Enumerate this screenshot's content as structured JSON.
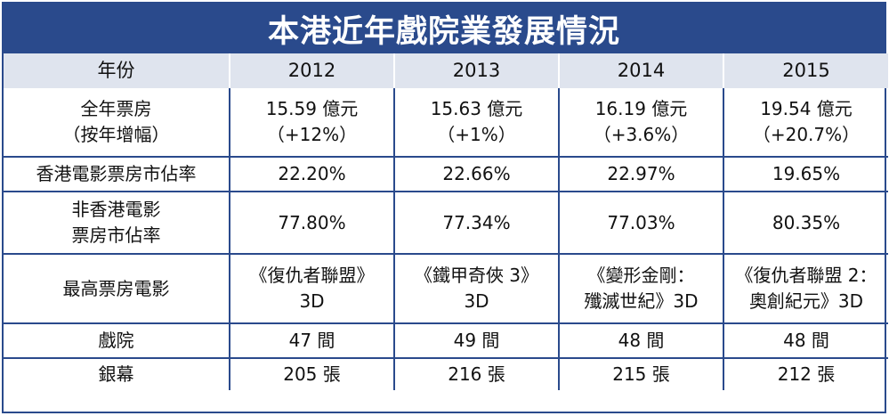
{
  "title": "本港近年戲院業發展情況",
  "header": {
    "label": "年份",
    "years": [
      "2012",
      "2013",
      "2014",
      "2015"
    ]
  },
  "rows": [
    {
      "label_lines": [
        "全年票房",
        "（按年增幅）"
      ],
      "cells": [
        [
          "15.59 億元",
          "（+12%）"
        ],
        [
          "15.63 億元",
          "（+1%）"
        ],
        [
          "16.19 億元",
          "（+3.6%）"
        ],
        [
          "19.54 億元",
          "（+20.7%）"
        ]
      ]
    },
    {
      "label_lines": [
        "香港電影票房市佔率"
      ],
      "cells": [
        [
          "22.20%"
        ],
        [
          "22.66%"
        ],
        [
          "22.97%"
        ],
        [
          "19.65%"
        ]
      ]
    },
    {
      "label_lines": [
        "非香港電影",
        "票房市佔率"
      ],
      "cells": [
        [
          "77.80%"
        ],
        [
          "77.34%"
        ],
        [
          "77.03%"
        ],
        [
          "80.35%"
        ]
      ]
    },
    {
      "label_lines": [
        "最高票房電影"
      ],
      "cells": [
        [
          "《復仇者聯盟》",
          "3D"
        ],
        [
          "《鐵甲奇俠 3》",
          "3D"
        ],
        [
          "《變形金剛：",
          "殲滅世紀》3D"
        ],
        [
          "《復仇者聯盟 2：",
          "奧創紀元》3D"
        ]
      ]
    },
    {
      "label_lines": [
        "戲院"
      ],
      "cells": [
        [
          "47 間"
        ],
        [
          "49 間"
        ],
        [
          "48 間"
        ],
        [
          "48 間"
        ]
      ]
    },
    {
      "label_lines": [
        "銀幕"
      ],
      "cells": [
        [
          "205 張"
        ],
        [
          "216 張"
        ],
        [
          "215 張"
        ],
        [
          "212 張"
        ]
      ]
    }
  ]
}
